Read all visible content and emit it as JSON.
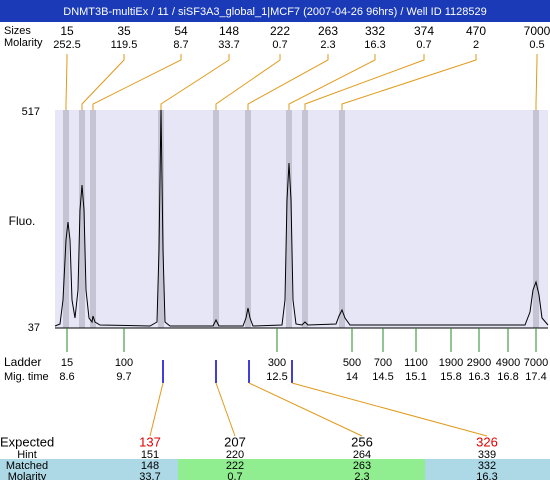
{
  "header": {
    "title": "DNMT3B-multiEx / 11 / siSF3A3_global_1|MCF7 (2007-04-26 96hrs) / Well ID 1128529"
  },
  "peaks": {
    "size_label": "Sizes",
    "molarity_label": "Molarity",
    "items": [
      {
        "size": "15",
        "molarity": "252.5"
      },
      {
        "size": "35",
        "molarity": "119.5"
      },
      {
        "size": "54",
        "molarity": "8.7"
      },
      {
        "size": "148",
        "molarity": "33.7"
      },
      {
        "size": "222",
        "molarity": "0.7"
      },
      {
        "size": "263",
        "molarity": "2.3"
      },
      {
        "size": "332",
        "molarity": "16.3"
      },
      {
        "size": "374",
        "molarity": "0.7"
      },
      {
        "size": "470",
        "molarity": "2"
      },
      {
        "size": "7000",
        "molarity": "0.5"
      }
    ]
  },
  "y_axis": {
    "label": "Fluo.",
    "max": "517",
    "min": "37"
  },
  "ladder": {
    "label": "Ladder",
    "time_label": "Mig. time",
    "items": [
      {
        "size": "15",
        "time": "8.6"
      },
      {
        "size": "100",
        "time": "9.7"
      },
      {
        "size": "300",
        "time": "12.5"
      },
      {
        "size": "500",
        "time": "14"
      },
      {
        "size": "700",
        "time": "14.5"
      },
      {
        "size": "1100",
        "time": "15.1"
      },
      {
        "size": "1900",
        "time": "15.8"
      },
      {
        "size": "2900",
        "time": "16.3"
      },
      {
        "size": "4900",
        "time": "16.8"
      },
      {
        "size": "7000",
        "time": "17.4"
      }
    ]
  },
  "expected": {
    "labels": [
      "Expected",
      "Hint",
      "Matched",
      "Molarity"
    ],
    "columns": [
      {
        "expected": "137",
        "color": "#e00000",
        "hint": "151",
        "matched": "148",
        "molarity": "33.7"
      },
      {
        "expected": "207",
        "color": "#000000",
        "hint": "220",
        "matched": "222",
        "molarity": "0.7"
      },
      {
        "expected": "256",
        "color": "#000000",
        "hint": "264",
        "matched": "263",
        "molarity": "2.3"
      },
      {
        "expected": "326",
        "color": "#e00000",
        "hint": "339",
        "matched": "332",
        "molarity": "16.3"
      }
    ]
  }
}
